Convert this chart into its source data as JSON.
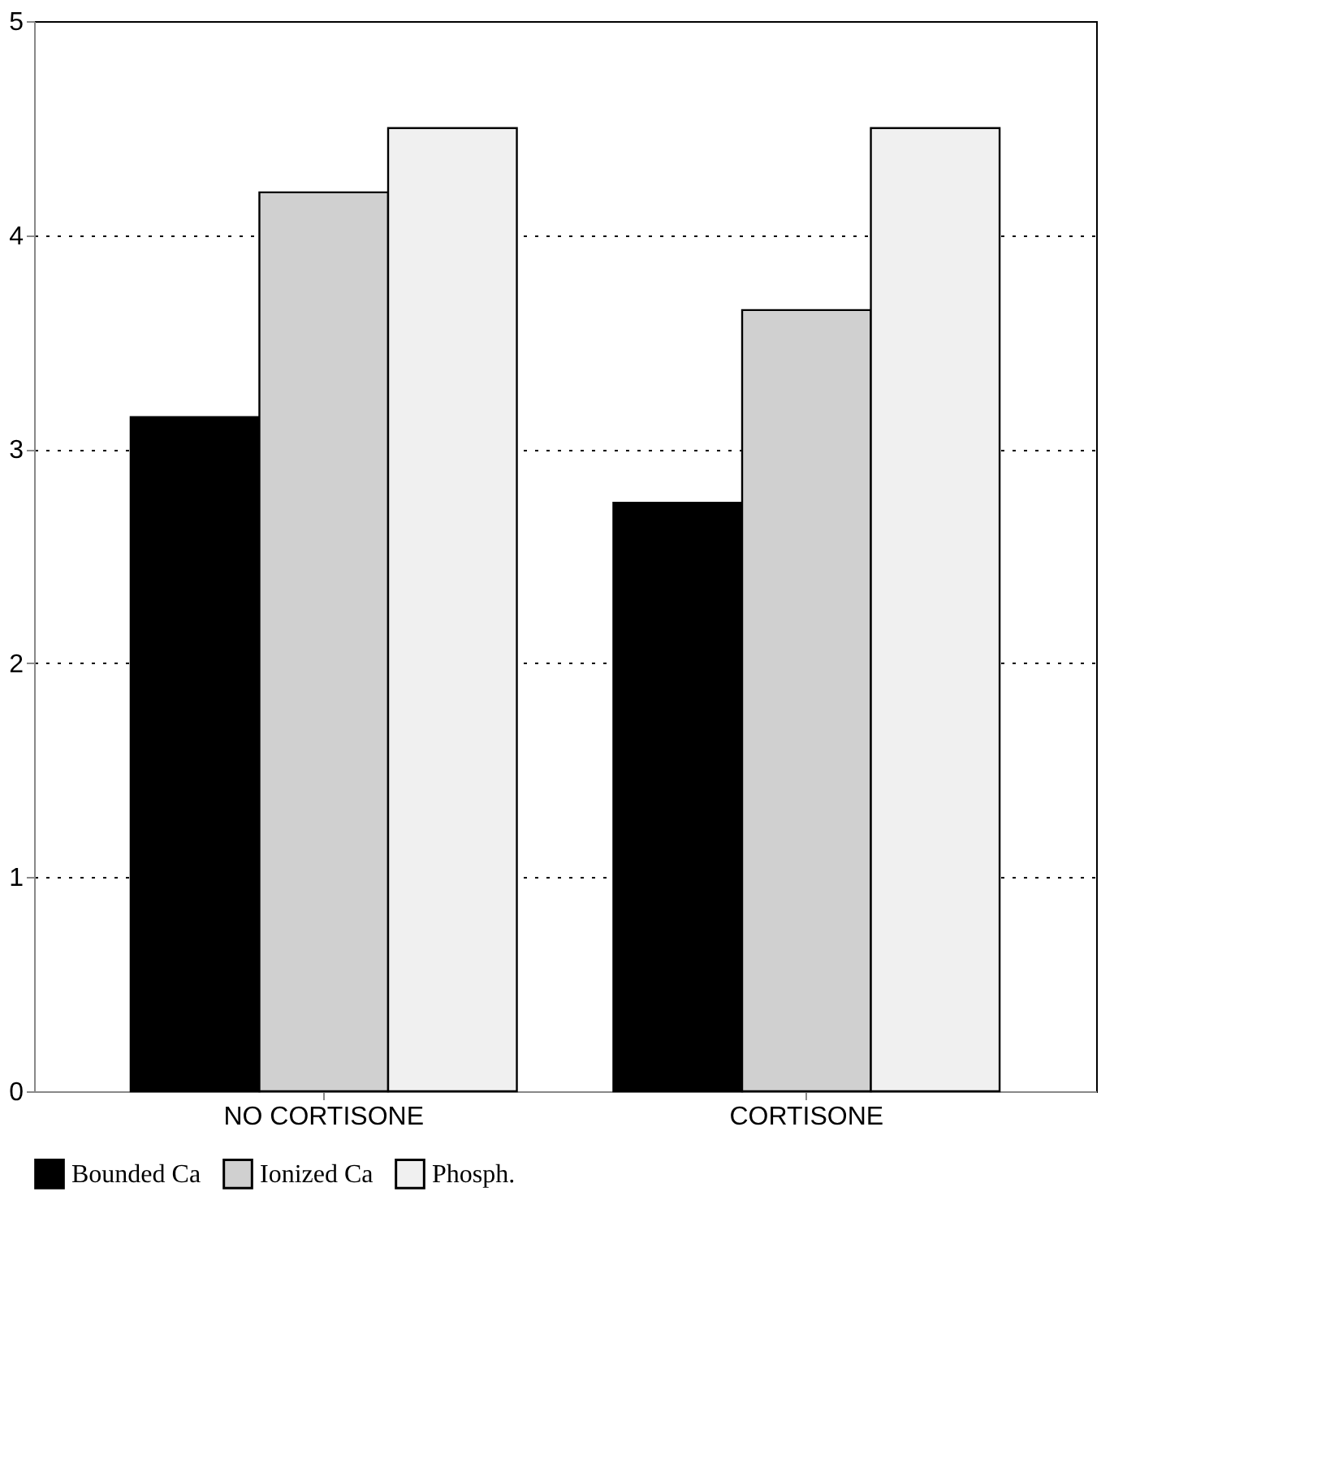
{
  "chart_data": {
    "type": "bar",
    "categories": [
      "NO CORTISONE",
      "CORTISONE"
    ],
    "series": [
      {
        "name": "Bounded Ca",
        "color": "#000000",
        "values": [
          3.15,
          2.75
        ]
      },
      {
        "name": "Ionized Ca",
        "color": "#d0d0d0",
        "values": [
          4.2,
          3.65
        ]
      },
      {
        "name": "Phosph.",
        "color": "#f0f0f0",
        "values": [
          4.5,
          4.5
        ]
      }
    ],
    "ylim": [
      0,
      5
    ],
    "yticks": [
      0,
      1,
      2,
      3,
      4,
      5
    ],
    "grid": "y",
    "legend": "bottom"
  }
}
